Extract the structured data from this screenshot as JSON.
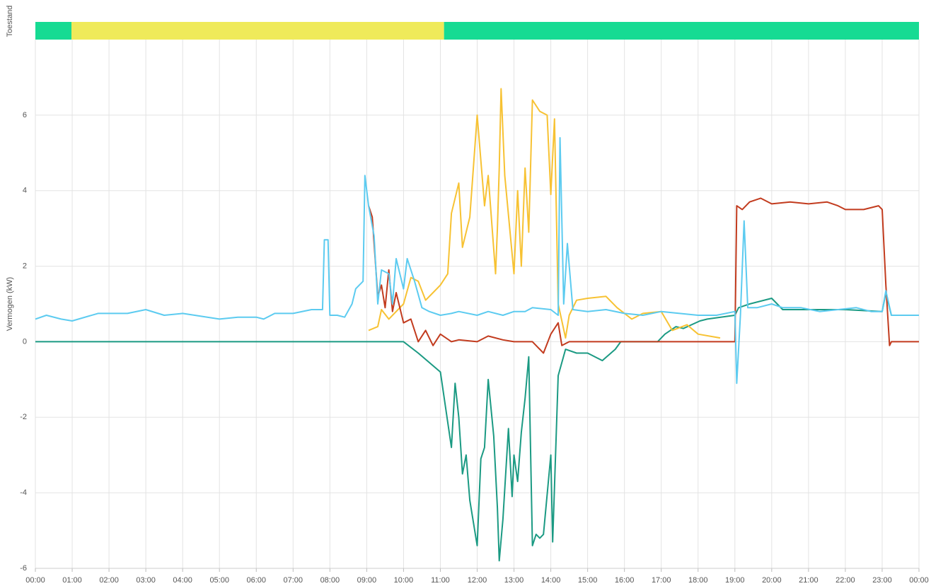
{
  "chart_data": {
    "type": "line",
    "state_label": "Toestand",
    "state_segments": [
      {
        "start": 0,
        "end": 0.98,
        "color": "#16db93"
      },
      {
        "start": 0.98,
        "end": 11.1,
        "color": "#efea5a"
      },
      {
        "start": 11.1,
        "end": 24,
        "color": "#16db93"
      }
    ],
    "y_label": "Vermogen (kW)",
    "xlim": [
      0,
      24
    ],
    "xticks": [
      {
        "value": 0,
        "label": "00:00"
      },
      {
        "value": 1,
        "label": "01:00"
      },
      {
        "value": 2,
        "label": "02:00"
      },
      {
        "value": 3,
        "label": "03:00"
      },
      {
        "value": 4,
        "label": "04:00"
      },
      {
        "value": 5,
        "label": "05:00"
      },
      {
        "value": 6,
        "label": "06:00"
      },
      {
        "value": 7,
        "label": "07:00"
      },
      {
        "value": 8,
        "label": "08:00"
      },
      {
        "value": 9,
        "label": "09:00"
      },
      {
        "value": 10,
        "label": "10:00"
      },
      {
        "value": 11,
        "label": "11:00"
      },
      {
        "value": 12,
        "label": "12:00"
      },
      {
        "value": 13,
        "label": "13:00"
      },
      {
        "value": 14,
        "label": "14:00"
      },
      {
        "value": 15,
        "label": "15:00"
      },
      {
        "value": 16,
        "label": "16:00"
      },
      {
        "value": 17,
        "label": "17:00"
      },
      {
        "value": 18,
        "label": "18:00"
      },
      {
        "value": 19,
        "label": "19:00"
      },
      {
        "value": 20,
        "label": "20:00"
      },
      {
        "value": 21,
        "label": "21:00"
      },
      {
        "value": 22,
        "label": "22:00"
      },
      {
        "value": 23,
        "label": "23:00"
      },
      {
        "value": 24,
        "label": "00:00"
      }
    ],
    "ylim": [
      -6,
      8
    ],
    "yticks": [
      -6,
      -4,
      -2,
      0,
      2,
      4,
      6
    ],
    "grid": true,
    "series": [
      {
        "color": "#1b9a83",
        "x": [
          0,
          10,
          10.4,
          11,
          11.3,
          11.4,
          11.5,
          11.6,
          11.7,
          11.8,
          12,
          12.1,
          12.2,
          12.3,
          12.45,
          12.55,
          12.6,
          12.7,
          12.85,
          12.95,
          13,
          13.1,
          13.2,
          13.3,
          13.4,
          13.5,
          13.6,
          13.7,
          13.8,
          14,
          14.05,
          14.2,
          14.4,
          14.7,
          15,
          15.4,
          15.75,
          15.9,
          16.9,
          17.1,
          17.4,
          17.6,
          18.05,
          18.25,
          19,
          19.1,
          19.4,
          20,
          20.3,
          21,
          22,
          23,
          23.1,
          23.25,
          24
        ],
        "values": [
          0,
          0,
          -0.3,
          -0.8,
          -2.8,
          -1.1,
          -2,
          -3.5,
          -3,
          -4.2,
          -5.4,
          -3.1,
          -2.8,
          -1,
          -2.5,
          -4.4,
          -5.8,
          -4.7,
          -2.3,
          -4.1,
          -3,
          -3.7,
          -2.4,
          -1.5,
          -0.4,
          -5.4,
          -5.1,
          -5.2,
          -5.1,
          -3,
          -5.3,
          -0.9,
          -0.2,
          -0.3,
          -0.3,
          -0.5,
          -0.2,
          0,
          0,
          0.2,
          0.4,
          0.35,
          0.55,
          0.6,
          0.7,
          0.9,
          1,
          1.15,
          0.85,
          0.85,
          0.85,
          0.8,
          1.3,
          0.7,
          0.7
        ]
      },
      {
        "color": "#f7c233",
        "x": [
          9.05,
          9.3,
          9.4,
          9.6,
          9.8,
          10,
          10.2,
          10.4,
          10.6,
          10.8,
          11,
          11.2,
          11.3,
          11.5,
          11.6,
          11.8,
          12,
          12.2,
          12.3,
          12.5,
          12.55,
          12.6,
          12.65,
          12.75,
          13,
          13.1,
          13.2,
          13.3,
          13.4,
          13.5,
          13.7,
          13.9,
          14,
          14.1,
          14.2,
          14.4,
          14.5,
          14.7,
          15,
          15.5,
          15.8,
          16.2,
          16.5,
          17,
          17.3,
          17.7,
          18,
          18.6
        ],
        "values": [
          0.3,
          0.4,
          0.85,
          0.6,
          0.8,
          1,
          1.7,
          1.6,
          1.1,
          1.3,
          1.5,
          1.8,
          3.4,
          4.2,
          2.5,
          3.3,
          6,
          3.6,
          4.4,
          1.8,
          3,
          4.6,
          6.7,
          4.4,
          1.8,
          4,
          2,
          4.6,
          2.9,
          6.4,
          6.1,
          6,
          3.9,
          5.9,
          1,
          0.1,
          0.7,
          1.1,
          1.15,
          1.2,
          0.9,
          0.6,
          0.75,
          0.8,
          0.3,
          0.45,
          0.2,
          0.1
        ]
      },
      {
        "color": "#c23b1e",
        "x": [
          9.05,
          9.15,
          9.3,
          9.4,
          9.5,
          9.6,
          9.7,
          9.8,
          10,
          10.2,
          10.4,
          10.6,
          10.8,
          11,
          11.3,
          11.5,
          12,
          12.3,
          12.7,
          13,
          13.5,
          13.8,
          14,
          14.2,
          14.3,
          14.5,
          15,
          16,
          17,
          18,
          19,
          19.05,
          19.2,
          19.4,
          19.7,
          20,
          20.5,
          21,
          21.5,
          21.8,
          22,
          22.5,
          22.9,
          23,
          23.1,
          23.2,
          23.25,
          24
        ],
        "values": [
          3.6,
          3.3,
          1.2,
          1.5,
          0.9,
          1.9,
          0.8,
          1.3,
          0.5,
          0.6,
          0,
          0.3,
          -0.1,
          0.2,
          0,
          0.05,
          0,
          0.15,
          0.05,
          0,
          0,
          -0.3,
          0.2,
          0.5,
          -0.1,
          0,
          0,
          0,
          0,
          0,
          0,
          3.6,
          3.5,
          3.7,
          3.8,
          3.65,
          3.7,
          3.65,
          3.7,
          3.6,
          3.5,
          3.5,
          3.6,
          3.5,
          1.5,
          -0.1,
          0,
          0
        ]
      },
      {
        "color": "#5ccbf0",
        "x": [
          0,
          0.3,
          0.7,
          1,
          1.7,
          2.5,
          3,
          3.5,
          4,
          5,
          5.5,
          6,
          6.2,
          6.5,
          7,
          7.5,
          7.8,
          7.85,
          7.95,
          8,
          8.2,
          8.4,
          8.6,
          8.7,
          8.9,
          8.95,
          9.05,
          9.2,
          9.3,
          9.4,
          9.6,
          9.7,
          9.8,
          10,
          10.1,
          10.3,
          10.5,
          10.7,
          11,
          11.3,
          11.5,
          12,
          12.3,
          12.7,
          13,
          13.3,
          13.5,
          14,
          14.2,
          14.25,
          14.35,
          14.45,
          14.6,
          15,
          15.5,
          16,
          16.5,
          17,
          17.5,
          18,
          18.5,
          19,
          19.05,
          19.15,
          19.25,
          19.35,
          19.6,
          20,
          20.3,
          20.8,
          21.3,
          21.8,
          22.3,
          22.7,
          23,
          23.1,
          23.25,
          24
        ],
        "values": [
          0.6,
          0.7,
          0.6,
          0.55,
          0.75,
          0.75,
          0.85,
          0.7,
          0.75,
          0.6,
          0.65,
          0.65,
          0.6,
          0.75,
          0.75,
          0.85,
          0.85,
          2.7,
          2.7,
          0.7,
          0.7,
          0.65,
          1,
          1.4,
          1.6,
          4.4,
          3.6,
          2.8,
          1,
          1.9,
          1.8,
          1,
          2.2,
          1.4,
          2.2,
          1.6,
          0.9,
          0.8,
          0.7,
          0.75,
          0.8,
          0.7,
          0.8,
          0.7,
          0.8,
          0.8,
          0.9,
          0.85,
          0.7,
          5.4,
          1,
          2.6,
          0.85,
          0.8,
          0.85,
          0.75,
          0.7,
          0.8,
          0.75,
          0.7,
          0.7,
          0.8,
          -1.1,
          0.7,
          3.2,
          0.9,
          0.9,
          1,
          0.9,
          0.9,
          0.8,
          0.85,
          0.9,
          0.8,
          0.8,
          1.35,
          0.7,
          0.7
        ]
      }
    ]
  }
}
